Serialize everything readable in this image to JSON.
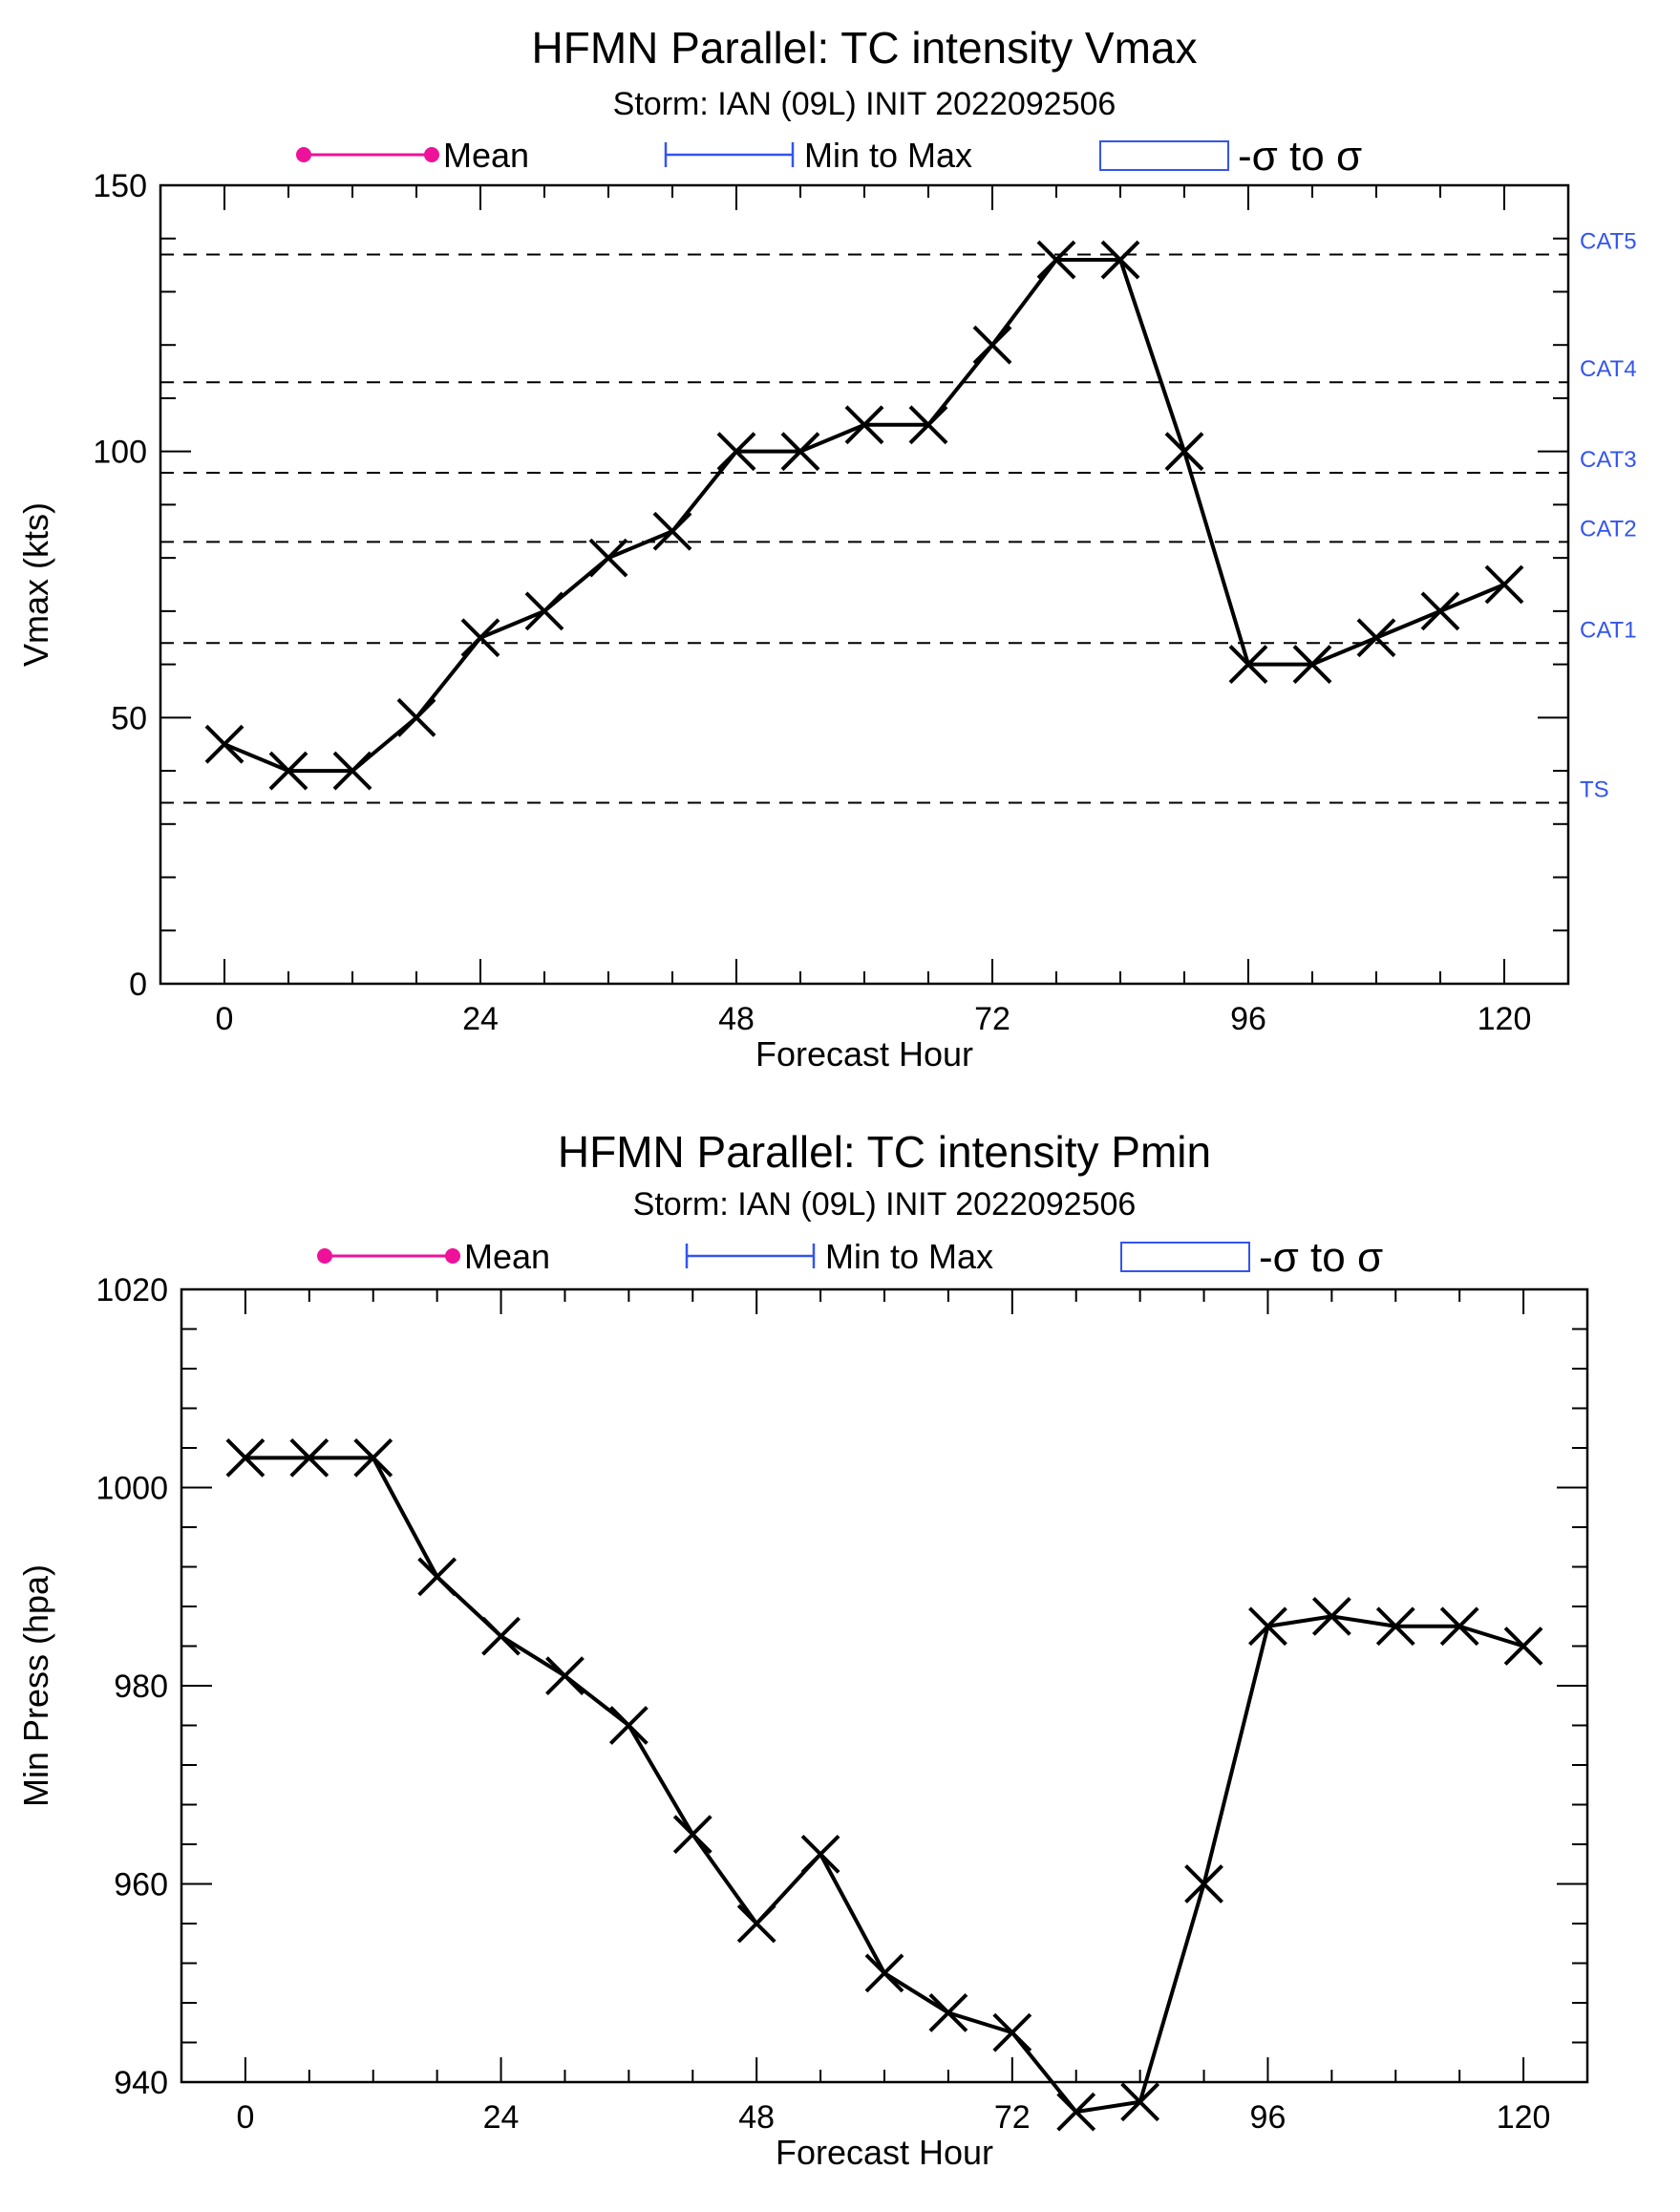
{
  "colors": {
    "mean": "#ee1199",
    "minmax": "#3355ee",
    "line": "#000000",
    "category_label": "#3355ee"
  },
  "legend": {
    "mean": "Mean",
    "minmax": "Min to Max",
    "sigma": "-σ to σ"
  },
  "chart_data": [
    {
      "type": "line",
      "title": "HFMN Parallel: TC intensity Vmax",
      "subtitle": "Storm: IAN (09L) INIT 2022092506",
      "xlabel": "Forecast Hour",
      "ylabel": "Vmax (kts)",
      "xlim": [
        -6,
        126
      ],
      "ylim": [
        0,
        150
      ],
      "xticks": [
        0,
        24,
        48,
        72,
        96,
        120
      ],
      "yticks": [
        0,
        50,
        100,
        150
      ],
      "grid": false,
      "legend_position": "top",
      "x": [
        0,
        6,
        12,
        18,
        24,
        30,
        36,
        42,
        48,
        54,
        60,
        66,
        72,
        78,
        84,
        90,
        96,
        102,
        108,
        114,
        120
      ],
      "series": [
        {
          "marker": "x",
          "values": [
            45,
            40,
            40,
            50,
            65,
            70,
            80,
            85,
            100,
            100,
            105,
            105,
            120,
            136,
            136,
            100,
            60,
            60,
            65,
            70,
            75
          ]
        }
      ],
      "reference_lines": [
        {
          "label": "CAT5",
          "value": 137
        },
        {
          "label": "CAT4",
          "value": 113
        },
        {
          "label": "CAT3",
          "value": 96
        },
        {
          "label": "CAT2",
          "value": 83
        },
        {
          "label": "CAT1",
          "value": 64
        },
        {
          "label": "TS",
          "value": 34
        }
      ]
    },
    {
      "type": "line",
      "title": "HFMN Parallel: TC intensity Pmin",
      "subtitle": "Storm: IAN (09L) INIT 2022092506",
      "xlabel": "Forecast Hour",
      "ylabel": "Min Press (hpa)",
      "xlim": [
        -6,
        126
      ],
      "ylim": [
        940,
        1020
      ],
      "xticks": [
        0,
        24,
        48,
        72,
        96,
        120
      ],
      "yticks": [
        940,
        960,
        980,
        1000,
        1020
      ],
      "grid": false,
      "legend_position": "top",
      "x": [
        0,
        6,
        12,
        18,
        24,
        30,
        36,
        42,
        48,
        54,
        60,
        66,
        72,
        78,
        84,
        90,
        96,
        102,
        108,
        114,
        120
      ],
      "series": [
        {
          "marker": "x",
          "values": [
            1003,
            1003,
            1003,
            991,
            985,
            981,
            976,
            965,
            956,
            963,
            951,
            947,
            945,
            937,
            938,
            960,
            986,
            987,
            986,
            986,
            984
          ]
        }
      ]
    }
  ]
}
